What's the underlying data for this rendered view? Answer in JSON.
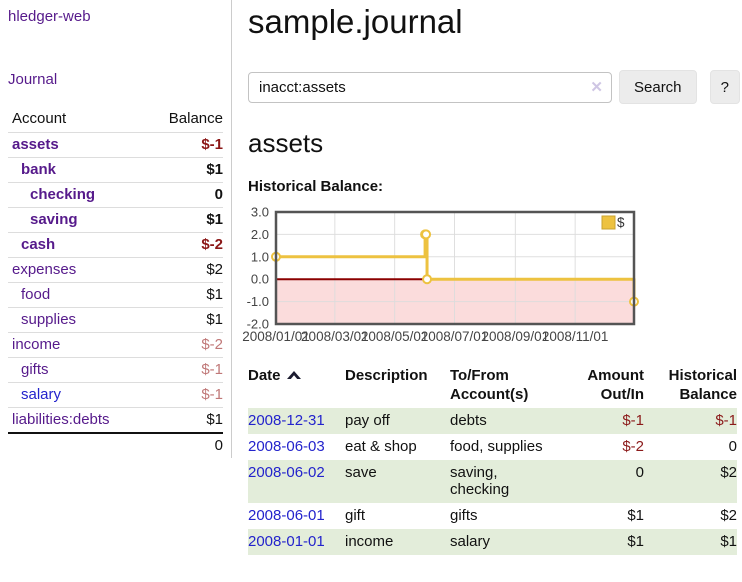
{
  "sidebar": {
    "app_title": "hledger-web",
    "journal_label": "Journal",
    "table": {
      "account_header": "Account",
      "balance_header": "Balance",
      "accounts": [
        {
          "name": "assets",
          "level": 1,
          "bold": true,
          "link_color": "purple",
          "balance": "$-1",
          "balance_class": "neg-strong"
        },
        {
          "name": "bank",
          "level": 2,
          "bold": true,
          "link_color": "purple",
          "balance": "$1",
          "balance_class": ""
        },
        {
          "name": "checking",
          "level": 3,
          "bold": true,
          "link_color": "purple",
          "balance": "0",
          "balance_class": ""
        },
        {
          "name": "saving",
          "level": 3,
          "bold": true,
          "link_color": "purple",
          "balance": "$1",
          "balance_class": ""
        },
        {
          "name": "cash",
          "level": 2,
          "bold": true,
          "link_color": "purple",
          "balance": "$-2",
          "balance_class": "neg-strong"
        },
        {
          "name": "expenses",
          "level": 1,
          "bold": false,
          "link_color": "purple",
          "balance": "$2",
          "balance_class": ""
        },
        {
          "name": "food",
          "level": 2,
          "bold": false,
          "link_color": "purple",
          "balance": "$1",
          "balance_class": ""
        },
        {
          "name": "supplies",
          "level": 2,
          "bold": false,
          "link_color": "purple",
          "balance": "$1",
          "balance_class": ""
        },
        {
          "name": "income",
          "level": 1,
          "bold": false,
          "link_color": "purple",
          "balance": "$-2",
          "balance_class": "neg-dim"
        },
        {
          "name": "gifts",
          "level": 2,
          "bold": false,
          "link_color": "purple",
          "balance": "$-1",
          "balance_class": "neg-dim"
        },
        {
          "name": "salary",
          "level": 2,
          "bold": false,
          "link_color": "blue",
          "balance": "$-1",
          "balance_class": "neg-dim"
        },
        {
          "name": "liabilities:debts",
          "level": 1,
          "bold": false,
          "link_color": "purple",
          "balance": "$1",
          "balance_class": ""
        }
      ],
      "total": "0"
    }
  },
  "main": {
    "title": "sample.journal",
    "account_heading": "assets",
    "chart_heading": "Historical Balance:"
  },
  "search": {
    "value": "inacct:assets",
    "clear_icon": "✕",
    "button_label": "Search",
    "help_label": "?"
  },
  "chart_data": {
    "type": "line",
    "step": true,
    "title": "Historical Balance",
    "x": [
      "2008-01-01",
      "2008-06-01",
      "2008-06-02",
      "2008-06-03",
      "2008-12-31"
    ],
    "values": [
      1,
      2,
      2,
      0,
      -1
    ],
    "xrange": [
      "2008-01-01",
      "2008-12-31"
    ],
    "ylim": [
      -2,
      3
    ],
    "yticks": [
      3.0,
      2.0,
      1.0,
      0.0,
      -1.0,
      -2.0
    ],
    "xticks": [
      "2008/01/01",
      "2008/03/01",
      "2008/05/01",
      "2008/07/01",
      "2008/09/01",
      "2008/11/01"
    ],
    "grid": true,
    "legend": [
      {
        "label": "$",
        "color": "#edc240"
      }
    ],
    "legend_position": "top-right",
    "line_color": "#edc240",
    "marker_fill": "#ffffff",
    "negative_region_color": "#fbdcdc",
    "zero_line_color": "#8b0000",
    "grid_color": "#dcdcdc",
    "border_color": "#545454"
  },
  "register": {
    "headers": {
      "date": "Date",
      "description": "Description",
      "accounts": "To/From Account(s)",
      "amount": "Amount Out/In",
      "balance": "Historical Balance"
    },
    "rows": [
      {
        "date": "2008-12-31",
        "description": "pay off",
        "accounts": "debts",
        "amount": "$-1",
        "amount_negative": true,
        "balance": "$-1",
        "balance_negative": true
      },
      {
        "date": "2008-06-03",
        "description": "eat & shop",
        "accounts": "food, supplies",
        "amount": "$-2",
        "amount_negative": true,
        "balance": "0",
        "balance_negative": false
      },
      {
        "date": "2008-06-02",
        "description": "save",
        "accounts": "saving, checking",
        "amount": "0",
        "amount_negative": false,
        "balance": "$2",
        "balance_negative": false
      },
      {
        "date": "2008-06-01",
        "description": "gift",
        "accounts": "gifts",
        "amount": "$1",
        "amount_negative": false,
        "balance": "$2",
        "balance_negative": false
      },
      {
        "date": "2008-01-01",
        "description": "income",
        "accounts": "salary",
        "amount": "$1",
        "amount_negative": false,
        "balance": "$1",
        "balance_negative": false
      }
    ]
  }
}
